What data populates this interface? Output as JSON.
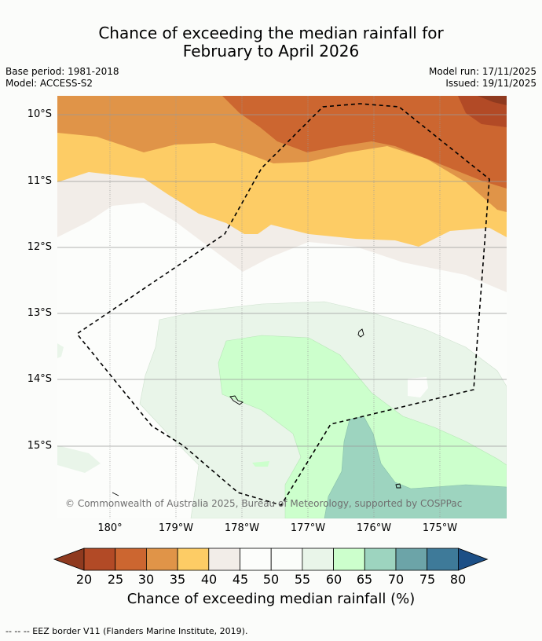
{
  "title": {
    "line1": "Chance of exceeding the median rainfall for",
    "line2": "February to April 2026"
  },
  "meta": {
    "base_period": "Base period: 1981-2018",
    "model": "Model: ACCESS-S2",
    "model_run": "Model run: 17/11/2025",
    "issued": "Issued: 19/11/2025"
  },
  "map": {
    "lat_labels": [
      "10°S",
      "11°S",
      "12°S",
      "13°S",
      "14°S",
      "15°S"
    ],
    "lon_labels": [
      "180°",
      "179°W",
      "178°W",
      "177°W",
      "176°W",
      "175°W"
    ],
    "copyright": "© Commonwealth of Australia 2025, Bureau of Meteorology, supported by COSPPac"
  },
  "colorbar": {
    "ticks": [
      "20",
      "25",
      "30",
      "35",
      "40",
      "45",
      "50",
      "55",
      "60",
      "65",
      "70",
      "75",
      "80"
    ],
    "colors": [
      "#8f3a1f",
      "#b24a26",
      "#cc6630",
      "#e09448",
      "#fdcc65",
      "#f2ede8",
      "#fcfdfb",
      "#fbfdfa",
      "#e9f5e9",
      "#ccffcc",
      "#9dd4bf",
      "#6ca4a8",
      "#3e7a99",
      "#1c4f86"
    ],
    "title": "Chance of exceeding median rainfall (%)"
  },
  "footer": "--  --  -- EEZ border V11 (Flanders Marine Institute, 2019)."
}
